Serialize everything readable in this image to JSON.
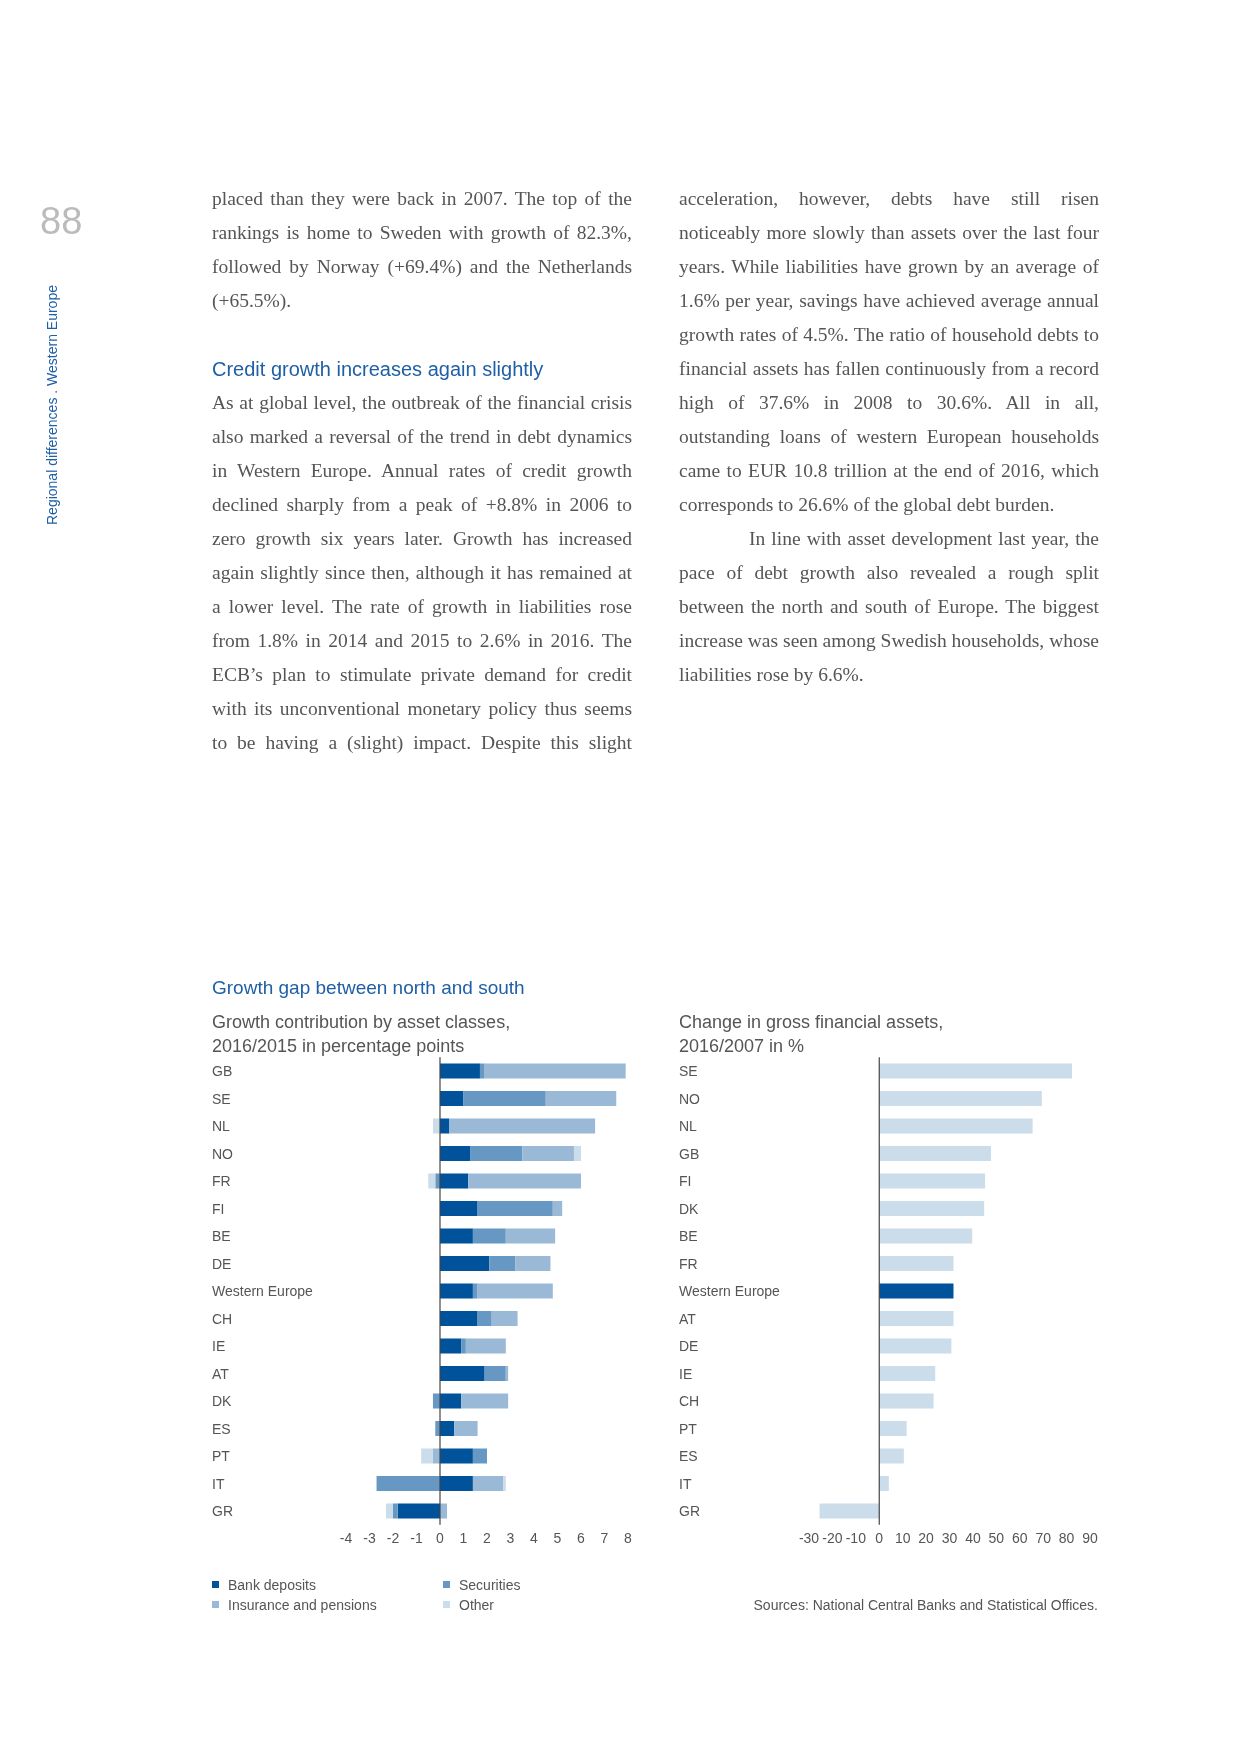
{
  "chart_data": [
    {
      "type": "bar",
      "orientation": "horizontal",
      "stacked": true,
      "title": "Growth gap between north and south",
      "subtitle": "Growth contribution by asset classes, 2016/2015 in percentage points",
      "categories": [
        "GB",
        "SE",
        "NL",
        "NO",
        "FR",
        "FI",
        "BE",
        "DE",
        "Western Europe",
        "CH",
        "IE",
        "AT",
        "DK",
        "ES",
        "PT",
        "IT",
        "GR"
      ],
      "series": [
        {
          "name": "Bank deposits",
          "color": "#00529b",
          "values": [
            1.7,
            1.0,
            0.4,
            1.3,
            1.2,
            1.6,
            1.4,
            2.1,
            1.4,
            1.6,
            0.9,
            1.9,
            0.9,
            0.6,
            1.4,
            1.4,
            -1.8
          ]
        },
        {
          "name": "Securities",
          "color": "#6798c4",
          "values": [
            0.2,
            3.5,
            0,
            2.2,
            -0.2,
            3.2,
            1.4,
            1.1,
            0.2,
            0.6,
            0.2,
            0.9,
            -0.3,
            -0.2,
            0.6,
            -2.7,
            -0.2
          ]
        },
        {
          "name": "Insurance and pensions",
          "color": "#99b9d6",
          "values": [
            6.0,
            3.0,
            6.2,
            2.2,
            4.8,
            0.4,
            2.1,
            1.5,
            3.2,
            1.1,
            1.7,
            0.1,
            2.0,
            1.0,
            -0.3,
            1.3,
            0.3
          ]
        },
        {
          "name": "Other",
          "color": "#cbdcea",
          "values": [
            0,
            0,
            -0.3,
            0.3,
            -0.3,
            null,
            null,
            0,
            null,
            0,
            0,
            0,
            0,
            0,
            -0.5,
            0.1,
            -0.3
          ]
        }
      ],
      "xlim": [
        -4,
        8
      ],
      "xticks": [
        -4,
        -3,
        -2,
        -1,
        0,
        1,
        2,
        3,
        4,
        5,
        6,
        7,
        8
      ],
      "legend": "bottom",
      "annotations": [
        "88",
        "Regional differences . Western Europe",
        "placed than they were back in 2007. The top of the rankings is home to Sweden with growth of 82.3%, followed by Norway (+69.4%) and the Netherlands (+65.5%).",
        "Credit growth increases again slightly",
        "As at global level, the outbreak of the financial crisis also marked a reversal of the trend in debt dynamics in Western Europe. Annual rates of credit growth declined sharply from a peak of +8.8% in 2006 to zero growth six years later. Growth has increased again slightly since then, although it has remained at a lower level. The rate of growth in liabilities rose from 1.8% in 2014 and 2015 to 2.6% in 2016. The ECB’s plan to stimulate private demand for credit with its unconventional monetary policy thus seems to be having a (slight) impact. Despite this slight",
        "acceleration, however, debts have still risen noticeably more slowly than assets over the last four years. While liabilities have grown by an average of 1.6% per year, savings have achieved average annual growth rates of 4.5%. The ratio of household debts to financial assets has fallen continuously from a record high of 37.6% in 2008 to 30.6%. All in all, outstanding loans of western European households came to EUR 10.8 trillion at the end of 2016, which corresponds to 26.6% of the global debt burden.",
        "In line with asset development last year, the pace of debt growth also revealed a rough split between the north and south of Europe. The biggest increase was seen among Swedish households, whose liabilities rose by 6.6%."
      ]
    },
    {
      "type": "bar",
      "orientation": "horizontal",
      "title": "Change in gross financial assets, 2016/2007 in %",
      "categories": [
        "SE",
        "NO",
        "NL",
        "GB",
        "FI",
        "DK",
        "BE",
        "FR",
        "Western Europe",
        "AT",
        "DE",
        "IE",
        "CH",
        "PT",
        "ES",
        "IT",
        "GR"
      ],
      "values": [
        82.3,
        69.4,
        65.5,
        47.7,
        45.2,
        44.8,
        39.7,
        31.7,
        31.7,
        31.7,
        30.8,
        23.9,
        23.2,
        11.7,
        10.5,
        4.1,
        -25.5
      ],
      "colors": [
        "#cbdcea",
        "#cbdcea",
        "#cbdcea",
        "#cbdcea",
        "#cbdcea",
        "#cbdcea",
        "#cbdcea",
        "#cbdcea",
        "#00529b",
        "#cbdcea",
        "#cbdcea",
        "#cbdcea",
        "#cbdcea",
        "#cbdcea",
        "#cbdcea",
        "#cbdcea",
        "#cbdcea"
      ],
      "xlim": [
        -30,
        90
      ],
      "xticks": [
        -30,
        -20,
        -10,
        0,
        10,
        20,
        30,
        40,
        50,
        60,
        70,
        80,
        90
      ],
      "legend": false,
      "annotations": [
        "Sources: National Central Banks and Statistical Offices."
      ]
    }
  ]
}
